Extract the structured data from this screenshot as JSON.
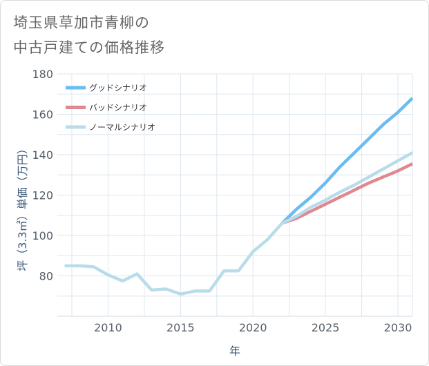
{
  "title_lines": [
    "埼玉県草加市青柳の",
    "中古戸建ての価格推移"
  ],
  "chart_data": {
    "type": "line",
    "title": "埼玉県草加市青柳の中古戸建ての価格推移",
    "xlabel": "年",
    "ylabel": "坪（3.3㎡）単価（万円）",
    "xlim": [
      2006.5,
      2031
    ],
    "ylim": [
      60,
      180
    ],
    "xticks": [
      2010,
      2015,
      2020,
      2025,
      2030
    ],
    "yticks": [
      80,
      100,
      120,
      140,
      160,
      180
    ],
    "grid": true,
    "legend_position": "top-left",
    "series": [
      {
        "name": "グッドシナリオ",
        "color": "#6bbcf0",
        "x": [
          2022,
          2023,
          2024,
          2025,
          2026,
          2027,
          2028,
          2029,
          2030,
          2031
        ],
        "y": [
          106,
          113,
          119,
          126,
          134,
          141,
          148,
          155,
          161,
          168
        ]
      },
      {
        "name": "バッドシナリオ",
        "color": "#e08890",
        "x": [
          2022,
          2023,
          2024,
          2025,
          2026,
          2027,
          2028,
          2029,
          2030,
          2031
        ],
        "y": [
          106,
          108.5,
          112,
          115.5,
          119,
          122.5,
          126,
          129,
          132,
          135.5
        ]
      },
      {
        "name": "ノーマルシナリオ",
        "color": "#b9dcea",
        "x": [
          2007,
          2008,
          2009,
          2010,
          2011,
          2012,
          2013,
          2014,
          2015,
          2016,
          2017,
          2018,
          2019,
          2020,
          2021,
          2022,
          2023,
          2024,
          2025,
          2026,
          2027,
          2028,
          2029,
          2030,
          2031
        ],
        "y": [
          85,
          85,
          84.5,
          80.5,
          77.5,
          81,
          73,
          73.5,
          71,
          72.5,
          72.5,
          82.5,
          82.5,
          92,
          98,
          106,
          109.5,
          114,
          117.5,
          121.5,
          125,
          129,
          133,
          137,
          141
        ]
      }
    ]
  }
}
